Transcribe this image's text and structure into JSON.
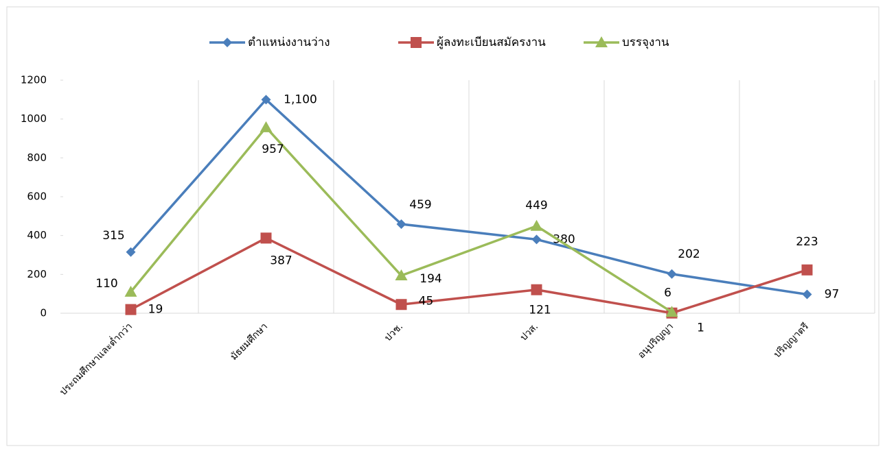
{
  "chart_data": {
    "type": "line",
    "categories": [
      "ประถมศึกษาและต่ำกว่า",
      "มัธยมศึกษา",
      "ปวช.",
      "ปวส.",
      "อนุปริญญา",
      "ปริญญาตรี"
    ],
    "series": [
      {
        "name": "ตำแหน่งงานว่าง",
        "color": "#4a7ebb",
        "marker": "diamond",
        "values": [
          315,
          1100,
          459,
          380,
          202,
          97
        ],
        "value_labels": [
          "315",
          "1,100",
          "459",
          "380",
          "202",
          "97"
        ]
      },
      {
        "name": "ผู้ลงทะเบียนสมัครงาน",
        "color": "#c0504d",
        "marker": "square",
        "values": [
          19,
          387,
          45,
          121,
          1,
          223
        ]
      },
      {
        "name": "บรรจุงาน",
        "color": "#9bbb59",
        "marker": "triangle",
        "values": [
          110,
          957,
          194,
          449,
          6,
          null
        ]
      }
    ],
    "ylim": [
      0,
      1200
    ],
    "yticks": [
      0,
      200,
      400,
      600,
      800,
      1000,
      1200
    ],
    "grid": true,
    "legend": "top"
  }
}
